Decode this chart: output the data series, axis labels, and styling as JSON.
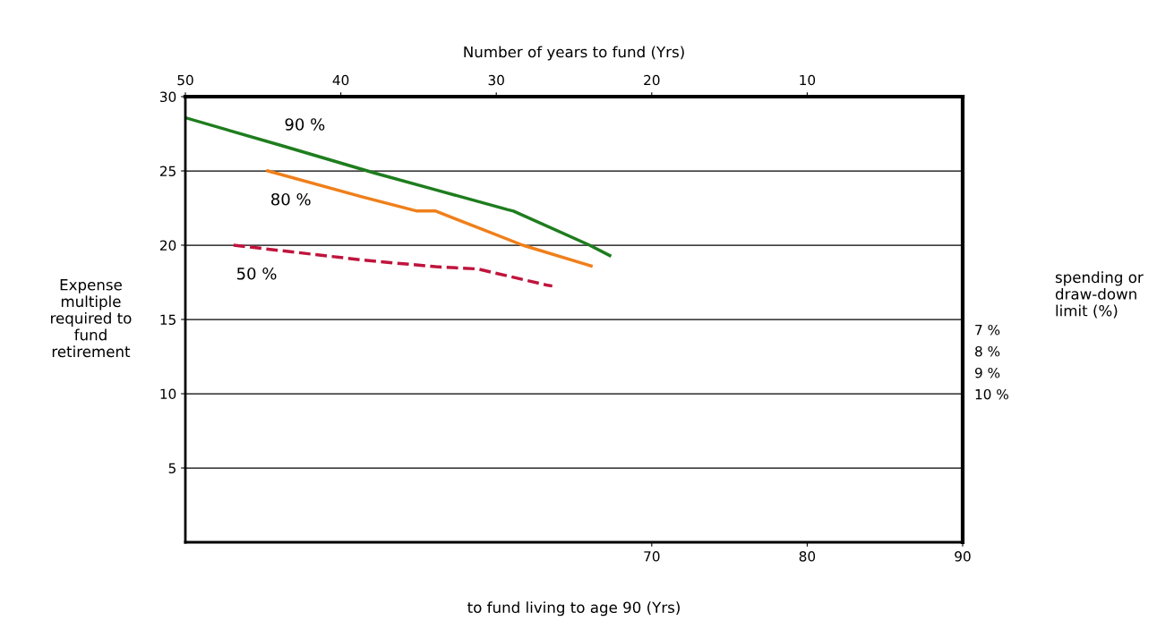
{
  "chart_data": {
    "type": "line",
    "x2label": "Number of years to fund (Yrs)",
    "xlabel": "to fund living to age 90 (Yrs)",
    "ylabel": "Expense\nmultiple\nrequired to\nfund\nretirement",
    "xlim": [
      40,
      90
    ],
    "xticks": [
      70,
      80,
      90
    ],
    "x2lim": [
      50,
      0
    ],
    "x2ticks": [
      50,
      40,
      30,
      20,
      10
    ],
    "ylim": [
      0,
      30
    ],
    "yticks": [
      5,
      10,
      15,
      20,
      25,
      30
    ],
    "annotations": [
      "7 %",
      "8 %",
      "9 %",
      "10 %",
      "spending or\ndraw-down\nlimit (%)"
    ],
    "grid": "y",
    "series": [
      {
        "name": "90 %",
        "color": "#1e7d1e",
        "line_style": "solid",
        "x": [
          40.1,
          46.2,
          52.2,
          56.2,
          60.7,
          61.1,
          66.0,
          67.3
        ],
        "values": [
          28.55,
          26.7,
          24.85,
          23.7,
          22.4,
          22.3,
          20.0,
          19.3
        ]
      },
      {
        "name": "80 %",
        "color": "#f07f1a",
        "line_style": "solid",
        "x": [
          45.3,
          51.4,
          54.9,
          56.1,
          61.7,
          65.8,
          66.1
        ],
        "values": [
          25.0,
          23.25,
          22.3,
          22.3,
          20.0,
          18.7,
          18.6
        ]
      },
      {
        "name": "50 %",
        "color": "#c0143c",
        "line_style": "dashed",
        "x": [
          43.1,
          48.1,
          51.4,
          56.1,
          58.8,
          63.3,
          63.6
        ],
        "values": [
          20.0,
          19.4,
          19.0,
          18.55,
          18.4,
          17.3,
          17.25
        ]
      }
    ]
  }
}
